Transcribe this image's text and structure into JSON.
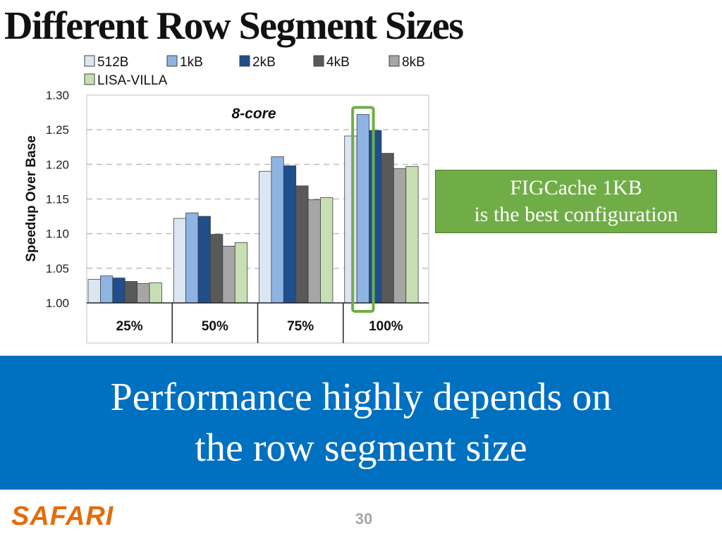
{
  "slide": {
    "title": "Different Row Segment Sizes",
    "callout_lines": [
      "FIGCache 1KB",
      "is the best configuration"
    ],
    "banner_lines": [
      "Performance highly depends on",
      "the row segment size"
    ],
    "logo": "SAFARI",
    "page_number": "30"
  },
  "colors": {
    "banner": "#0070c0",
    "callout": "#70ad47",
    "highlight": "#70ad47",
    "logo": "#e46c0a"
  },
  "chart_data": {
    "type": "bar",
    "annotation": "8-core",
    "ylabel": "Speedup Over Base",
    "ylim": [
      1.0,
      1.3
    ],
    "yticks": [
      "1.00",
      "1.05",
      "1.10",
      "1.15",
      "1.20",
      "1.25",
      "1.30"
    ],
    "grid": true,
    "legend_position": "top",
    "categories": [
      "25%",
      "50%",
      "75%",
      "100%"
    ],
    "series": [
      {
        "name": "512B",
        "color": "#dce6f2",
        "values": [
          1.034,
          1.122,
          1.19,
          1.241
        ]
      },
      {
        "name": "1kB",
        "color": "#8eb4e3",
        "values": [
          1.039,
          1.13,
          1.211,
          1.272
        ]
      },
      {
        "name": "2kB",
        "color": "#1f4e8c",
        "values": [
          1.036,
          1.125,
          1.198,
          1.249
        ]
      },
      {
        "name": "4kB",
        "color": "#595959",
        "values": [
          1.031,
          1.099,
          1.169,
          1.216
        ]
      },
      {
        "name": "8kB",
        "color": "#a6a6a6",
        "values": [
          1.028,
          1.082,
          1.149,
          1.194
        ]
      },
      {
        "name": "LISA-VILLA",
        "color": "#c6e0b4",
        "values": [
          1.029,
          1.087,
          1.152,
          1.197
        ]
      }
    ],
    "highlight": {
      "category": "100%",
      "series": "1kB"
    }
  }
}
